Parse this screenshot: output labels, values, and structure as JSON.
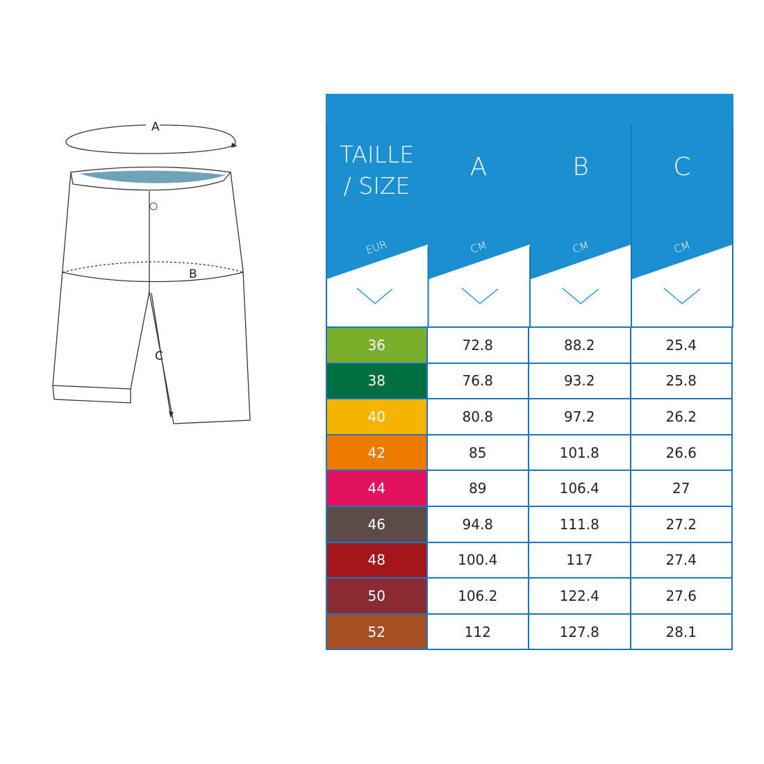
{
  "illustration": {
    "labels": [
      "A",
      "B",
      "C"
    ]
  },
  "table": {
    "header": {
      "size_title_line1": "TAILLE",
      "size_title_line2": "/ SIZE",
      "columns": [
        "A",
        "B",
        "C"
      ],
      "size_unit": "EUR",
      "measure_unit": "CM"
    },
    "colors": {
      "header_blue": "#1b8fd0",
      "border_blue": "#1b76c2"
    },
    "rows": [
      {
        "size": "36",
        "a": "72.8",
        "b": "88.2",
        "c": "25.4",
        "color": "#7aaf2c"
      },
      {
        "size": "38",
        "a": "76.8",
        "b": "93.2",
        "c": "25.8",
        "color": "#006f3f"
      },
      {
        "size": "40",
        "a": "80.8",
        "b": "97.2",
        "c": "26.2",
        "color": "#f6b300"
      },
      {
        "size": "42",
        "a": "85",
        "b": "101.8",
        "c": "26.6",
        "color": "#ee7a00"
      },
      {
        "size": "44",
        "a": "89",
        "b": "106.4",
        "c": "27",
        "color": "#e3125f"
      },
      {
        "size": "46",
        "a": "94.8",
        "b": "111.8",
        "c": "27.2",
        "color": "#5c4b47"
      },
      {
        "size": "48",
        "a": "100.4",
        "b": "117",
        "c": "27.4",
        "color": "#a3161b"
      },
      {
        "size": "50",
        "a": "106.2",
        "b": "122.4",
        "c": "27.6",
        "color": "#8c2a33"
      },
      {
        "size": "52",
        "a": "112",
        "b": "127.8",
        "c": "28.1",
        "color": "#a64f22"
      }
    ]
  }
}
